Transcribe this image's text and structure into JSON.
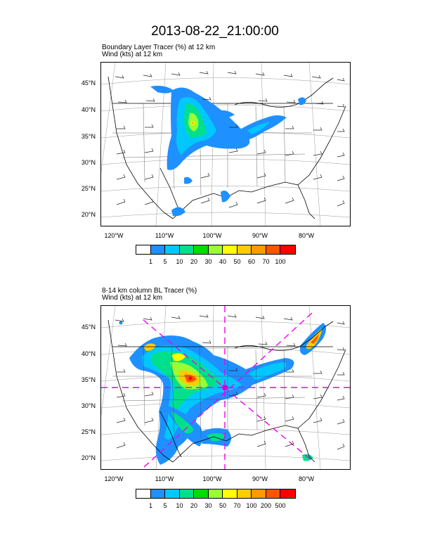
{
  "title": "2013-08-22_21:00:00",
  "panels": [
    {
      "subtitle_line1": "Boundary Layer Tracer   (%)     at   12 km",
      "subtitle_line2": "Wind   (kts)     at   12 km",
      "lat_labels": [
        "45°N",
        "40°N",
        "35°N",
        "30°N",
        "25°N",
        "20°N"
      ],
      "lon_labels": [
        "120°W",
        "110°W",
        "100°W",
        "90°W",
        "80°W"
      ],
      "colorbar_labels": [
        "1",
        "5",
        "10",
        "20",
        "30",
        "40",
        "50",
        "60",
        "70",
        "100"
      ]
    },
    {
      "subtitle_line1": "8-14 km column BL Tracer    (%)",
      "subtitle_line2": "Wind   (kts)     at   12 km",
      "lat_labels": [
        "45°N",
        "40°N",
        "35°N",
        "30°N",
        "25°N",
        "20°N"
      ],
      "lon_labels": [
        "120°W",
        "110°W",
        "100°W",
        "90°W",
        "80°W"
      ],
      "colorbar_labels": [
        "1",
        "5",
        "10",
        "20",
        "30",
        "50",
        "70",
        "100",
        "200",
        "500"
      ]
    }
  ],
  "colorbar_colors": [
    "#ffffff",
    "#1e90ff",
    "#00c8ff",
    "#00e08c",
    "#00dd00",
    "#99ff33",
    "#ffff00",
    "#ffcc00",
    "#ff9900",
    "#ff5500",
    "#ff0000"
  ]
}
